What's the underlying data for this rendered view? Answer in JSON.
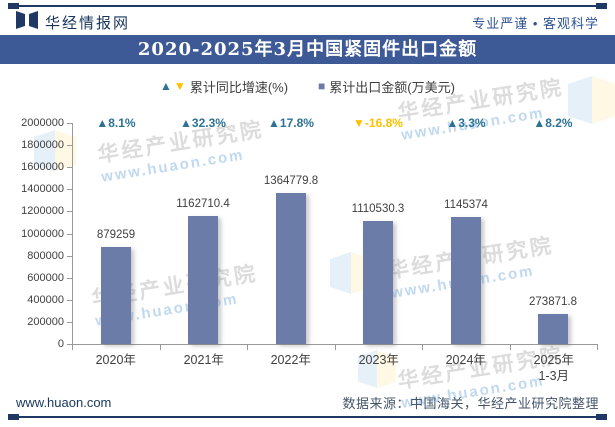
{
  "header": {
    "brand": "华经情报网",
    "tagline": "专业严谨 • 客观科学"
  },
  "title": "2020-2025年3月中国紧固件出口金额",
  "legend": {
    "growth_label": "累计同比增速(%)",
    "amount_label": "累计出口金额(万美元)"
  },
  "icons": {
    "up_triangle": "▲",
    "down_triangle": "▼",
    "square": "■"
  },
  "chart_data": {
    "type": "bar",
    "title": "2020-2025年3月中国紧固件出口金额",
    "categories": [
      "2020年",
      "2021年",
      "2022年",
      "2023年",
      "2024年",
      "2025年\n1-3月"
    ],
    "series": [
      {
        "name": "累计出口金额(万美元)",
        "type": "bar",
        "color": "#6A7CA7",
        "values": [
          879259,
          1162710.4,
          1364779.8,
          1110530.3,
          1145374,
          273871.8
        ]
      },
      {
        "name": "累计同比增速(%)",
        "type": "marker",
        "positive_color": "#2C7295",
        "negative_color": "#FFC000",
        "values": [
          8.1,
          32.3,
          17.8,
          -16.8,
          3.3,
          8.2
        ]
      }
    ],
    "ylim": [
      0,
      2000000
    ],
    "yticks": [
      0,
      200000,
      400000,
      600000,
      800000,
      1000000,
      1200000,
      1400000,
      1600000,
      1800000,
      2000000
    ],
    "grid": false,
    "legend_position": "top"
  },
  "watermark": {
    "text": "华经产业研究院",
    "url": "www.huaon.com"
  },
  "footer": {
    "site": "www.huaon.com",
    "source": "数据来源：中国海关，华经产业研究院整理"
  },
  "colors": {
    "rule_navy": "#1F3864",
    "title_bar": "#3E5A96",
    "bar": "#6A7CA7",
    "positive": "#2C7295",
    "negative": "#FFC000"
  }
}
